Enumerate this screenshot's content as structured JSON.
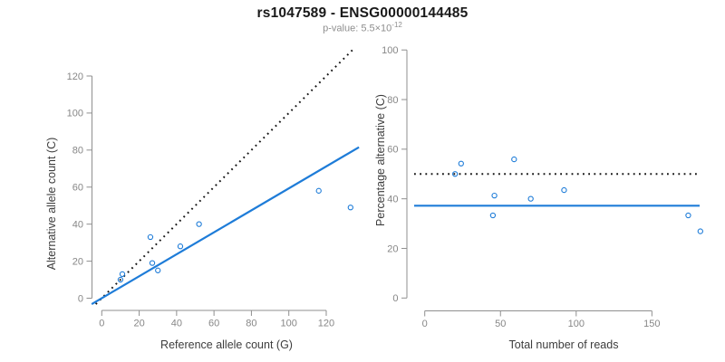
{
  "figure": {
    "title": "rs1047589 - ENSG00000144485",
    "subtitle_prefix": "p-value: 5.5×10",
    "subtitle_exponent": "-12"
  },
  "colors": {
    "point_blue": "#1e7cd8",
    "fit_line_blue": "#1e7cd8",
    "reference_line_black": "#141414",
    "axis_line_gray": "#8f8f8f",
    "tick_label_gray": "#878787",
    "axis_label_dark": "#3d3d3d",
    "title_color": "#191919",
    "subtitle_gray": "#8e8e8e"
  },
  "chart_data": [
    {
      "panel": "left",
      "type": "scatter",
      "xlabel": "Reference allele count (G)",
      "ylabel": "Alternative allele count (C)",
      "xticks": [
        0,
        20,
        40,
        60,
        80,
        100,
        120
      ],
      "yticks": [
        0,
        20,
        40,
        60,
        80,
        100,
        120
      ],
      "xlim": [
        -5.5,
        137.5
      ],
      "ylim": [
        -3.2,
        134.2
      ],
      "grid": false,
      "legend": "none",
      "points": [
        [
          10,
          10
        ],
        [
          11,
          13
        ],
        [
          26,
          33
        ],
        [
          27,
          19
        ],
        [
          30,
          15
        ],
        [
          42,
          28
        ],
        [
          52,
          40
        ],
        [
          116,
          58
        ],
        [
          133,
          49
        ]
      ],
      "lines": [
        {
          "name": "identity-line",
          "style": "dotted",
          "color_key": "reference_line_black",
          "slope": 1,
          "intercept": 0
        },
        {
          "name": "fit-line",
          "style": "solid",
          "color_key": "fit_line_blue",
          "slope": 0.593,
          "intercept": 0
        }
      ]
    },
    {
      "panel": "right",
      "type": "scatter",
      "xlabel": "Total number of reads",
      "ylabel": "Percentage alternative (C)",
      "xticks": [
        0,
        50,
        100,
        150
      ],
      "yticks": [
        0,
        20,
        40,
        60,
        80,
        100
      ],
      "xlim": [
        -7,
        181.5
      ],
      "ylim": [
        -5.2,
        100.4
      ],
      "grid": false,
      "legend": "none",
      "points": [
        [
          20,
          50
        ],
        [
          24,
          54.2
        ],
        [
          45,
          33.3
        ],
        [
          46,
          41.3
        ],
        [
          59,
          55.9
        ],
        [
          70,
          40
        ],
        [
          92,
          43.5
        ],
        [
          174,
          33.3
        ],
        [
          182,
          26.9
        ]
      ],
      "lines": [
        {
          "name": "expected-50pct-line",
          "style": "dotted",
          "color_key": "reference_line_black",
          "slope": 0,
          "intercept": 50
        },
        {
          "name": "mean-percentage-line",
          "style": "solid",
          "color_key": "fit_line_blue",
          "slope": 0,
          "intercept": 37.2
        }
      ]
    }
  ]
}
